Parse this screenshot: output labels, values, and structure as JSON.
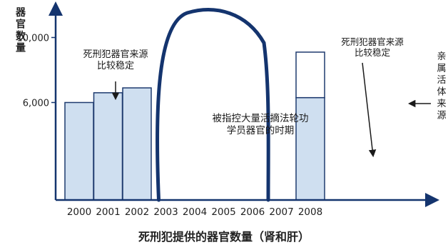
{
  "chart_data": {
    "type": "bar",
    "title": "死刑犯提供的器官数量（肾和肝）",
    "ylabel": "器官数量",
    "ylim": [
      0,
      11500
    ],
    "yticks": [
      {
        "value": 6000,
        "label": "6,000"
      },
      {
        "value": 10000,
        "label": "10,000"
      }
    ],
    "categories": [
      "2000",
      "2001",
      "2002",
      "2003",
      "2004",
      "2005",
      "2006",
      "2007",
      "2008"
    ],
    "series": [
      {
        "values": [
          6000,
          6600,
          6900,
          null,
          null,
          null,
          null,
          null,
          6300
        ]
      },
      {
        "values": [
          null,
          null,
          null,
          null,
          null,
          null,
          null,
          null,
          2800
        ]
      }
    ],
    "annotations": [
      {
        "text_lines": [
          "死刑犯器官来源",
          "比较稳定"
        ],
        "points_to": "2001"
      },
      {
        "text_lines": [
          "被指控大量活摘法轮功",
          "学员器官的时期"
        ],
        "span": [
          "2003",
          "2006"
        ]
      },
      {
        "text_lines": [
          "死刑犯器官来源",
          "比较稳定"
        ],
        "points_to": "2008"
      },
      {
        "text_lines": [
          "亲",
          "属",
          "活",
          "体",
          "来",
          "源"
        ],
        "points_to": "2008"
      }
    ],
    "colors": {
      "bar_fill": "#cfdff0",
      "bar_stroke": "#1f3b6f",
      "bracket": "#14346e",
      "axis": "#14346e"
    }
  }
}
